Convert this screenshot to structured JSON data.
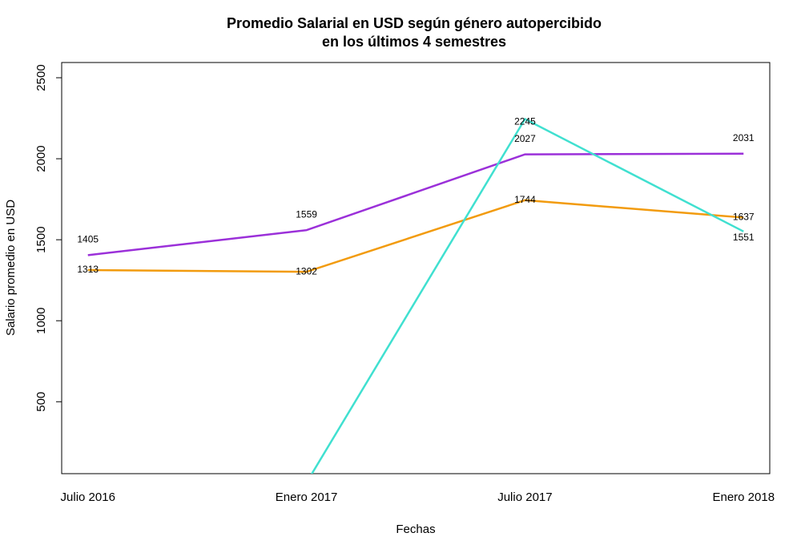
{
  "chart_data": {
    "type": "line",
    "title": [
      "Promedio Salarial en USD según género autopercibido",
      "en los últimos 4 semestres"
    ],
    "x_label": "Fechas",
    "y_label": "Salario promedio en USD",
    "categories": [
      "Julio 2016",
      "Enero 2017",
      "Julio 2017",
      "Enero 2018"
    ],
    "series": [
      {
        "color": "#9b30d9",
        "values": [
          1405,
          1559,
          2027,
          2031
        ]
      },
      {
        "color": "#f29b0e",
        "values": [
          1313,
          1302,
          1744,
          1637
        ]
      },
      {
        "color": "#40e0d0",
        "values": [
          null,
          0,
          2245,
          1551
        ]
      }
    ],
    "ylim": [
      56,
      2594
    ],
    "yticks": [
      500,
      1000,
      1500,
      2000,
      2500
    ]
  }
}
